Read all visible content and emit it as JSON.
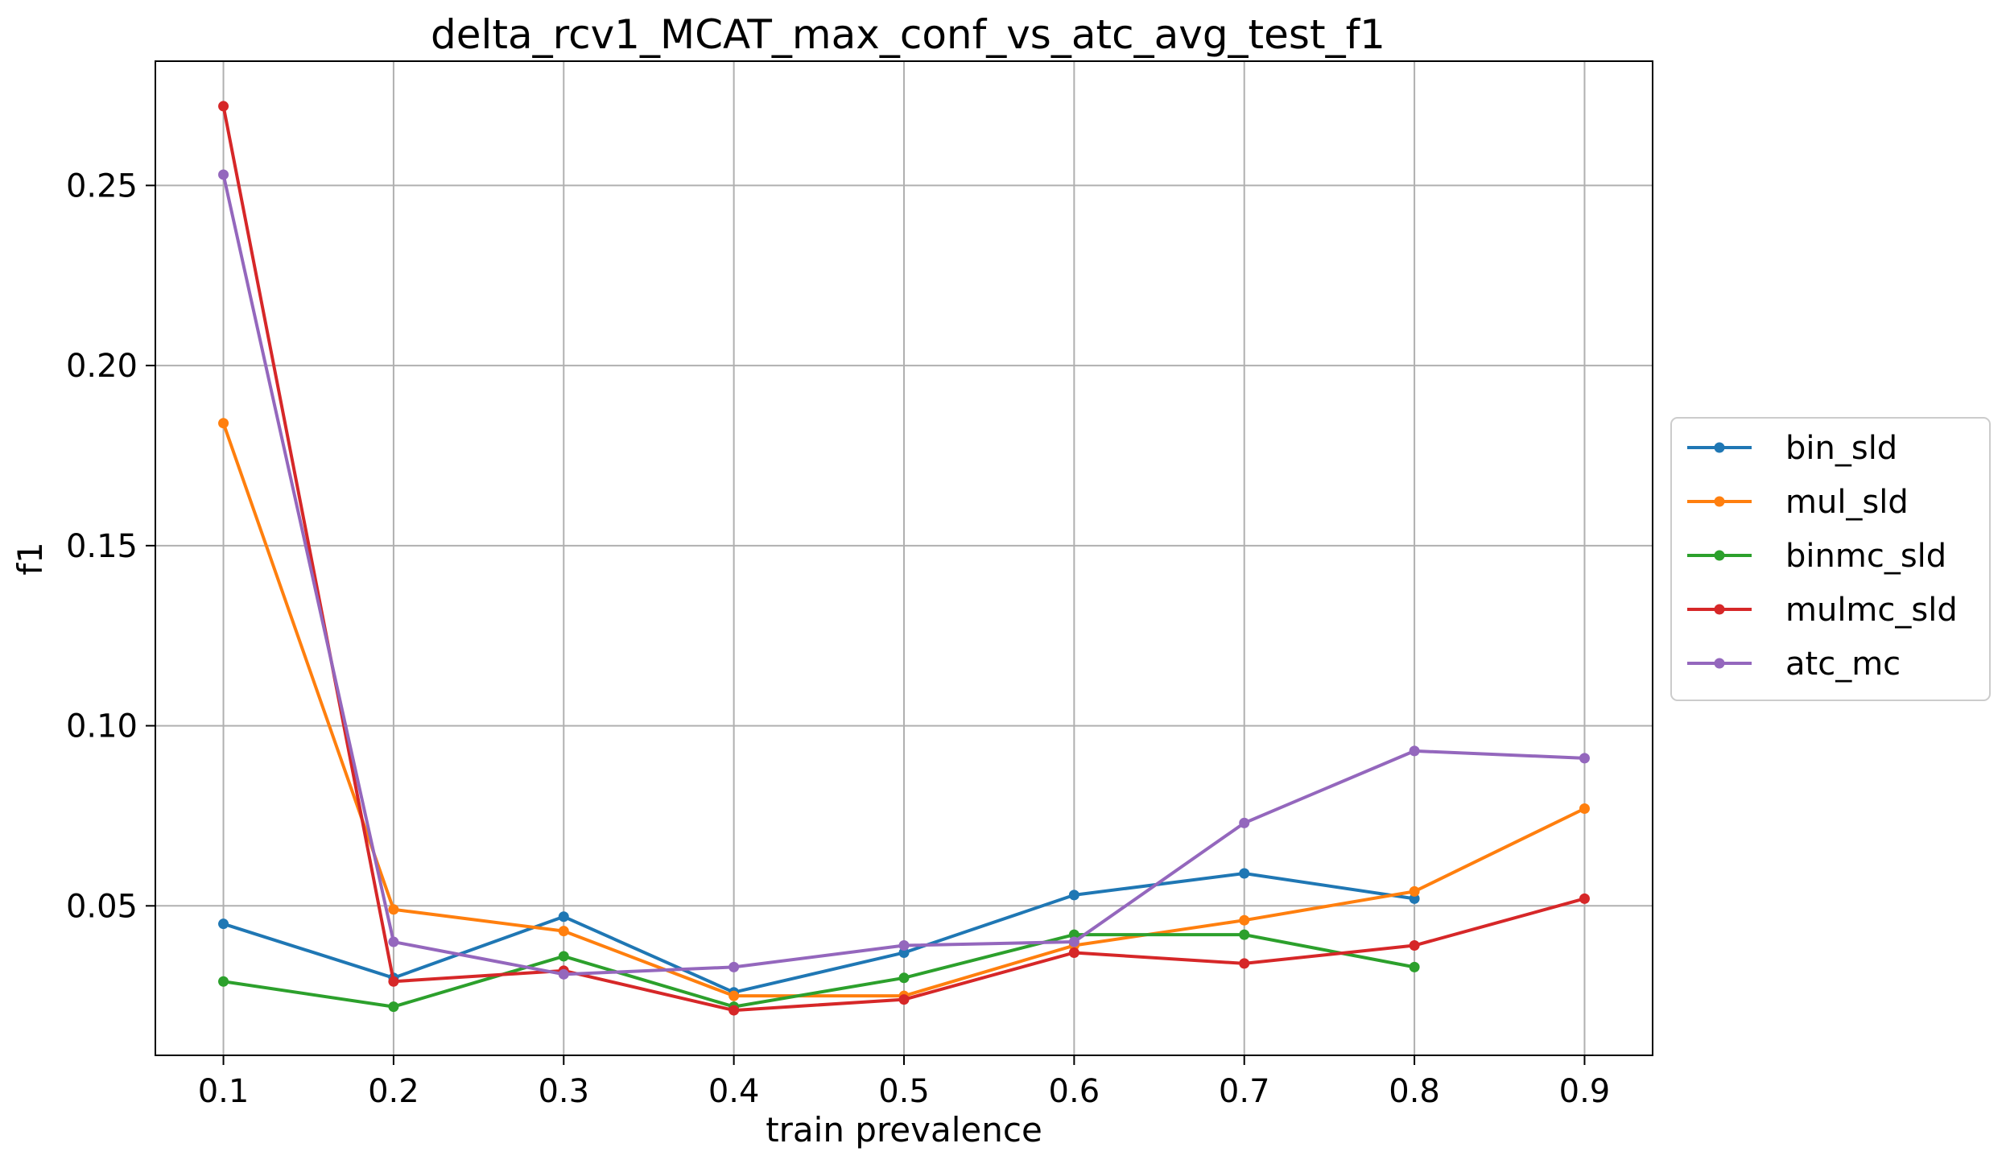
{
  "chart_data": {
    "type": "line",
    "title": "delta_rcv1_MCAT_max_conf_vs_atc_avg_test_f1",
    "xlabel": "train prevalence",
    "ylabel": "f1",
    "xlim": [
      0.06,
      0.94
    ],
    "ylim": [
      0.0085,
      0.2845
    ],
    "xticks": [
      0.1,
      0.2,
      0.3,
      0.4,
      0.5,
      0.6,
      0.7,
      0.8,
      0.9
    ],
    "xtick_labels": [
      "0.1",
      "0.2",
      "0.3",
      "0.4",
      "0.5",
      "0.6",
      "0.7",
      "0.8",
      "0.9"
    ],
    "yticks": [
      0.05,
      0.1,
      0.15,
      0.2,
      0.25
    ],
    "ytick_labels": [
      "0.05",
      "0.10",
      "0.15",
      "0.20",
      "0.25"
    ],
    "grid": true,
    "legend_position": "outside-right",
    "series": [
      {
        "name": "bin_sld",
        "color": "#1f77b4",
        "x": [
          0.1,
          0.2,
          0.3,
          0.4,
          0.5,
          0.6,
          0.7,
          0.8
        ],
        "y": [
          0.045,
          0.03,
          0.047,
          0.026,
          0.037,
          0.053,
          0.059,
          0.052
        ]
      },
      {
        "name": "mul_sld",
        "color": "#ff7f0e",
        "x": [
          0.1,
          0.2,
          0.3,
          0.4,
          0.5,
          0.6,
          0.7,
          0.8,
          0.9
        ],
        "y": [
          0.184,
          0.049,
          0.043,
          0.025,
          0.025,
          0.039,
          0.046,
          0.054,
          0.077
        ]
      },
      {
        "name": "binmc_sld",
        "color": "#2ca02c",
        "x": [
          0.1,
          0.2,
          0.3,
          0.4,
          0.5,
          0.6,
          0.7,
          0.8
        ],
        "y": [
          0.029,
          0.022,
          0.036,
          0.022,
          0.03,
          0.042,
          0.042,
          0.033
        ]
      },
      {
        "name": "mulmc_sld",
        "color": "#d62728",
        "x": [
          0.1,
          0.2,
          0.3,
          0.4,
          0.5,
          0.6,
          0.7,
          0.8,
          0.9
        ],
        "y": [
          0.272,
          0.029,
          0.032,
          0.021,
          0.024,
          0.037,
          0.034,
          0.039,
          0.052
        ]
      },
      {
        "name": "atc_mc",
        "color": "#9467bd",
        "x": [
          0.1,
          0.2,
          0.3,
          0.4,
          0.5,
          0.6,
          0.7,
          0.8,
          0.9
        ],
        "y": [
          0.253,
          0.04,
          0.031,
          0.033,
          0.039,
          0.04,
          0.073,
          0.093,
          0.091
        ]
      }
    ]
  }
}
